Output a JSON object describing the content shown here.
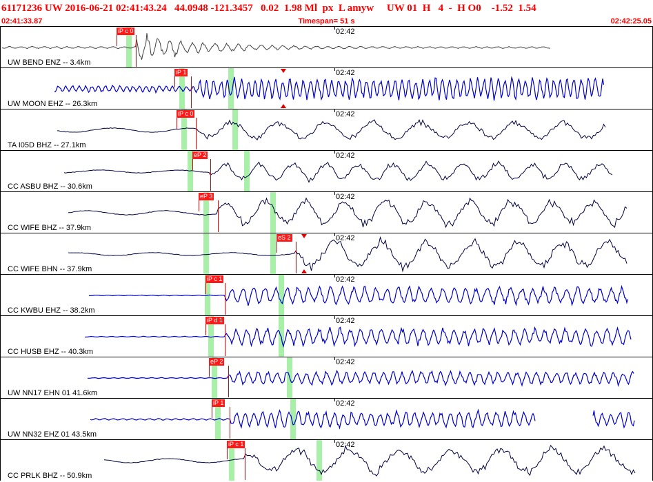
{
  "header": {
    "title": "61171236 UW 2016-06-21 02:41:43.24   44.0948 -121.3457   0.02  1.98 Ml  px  L amyw     UW 01  H   4  -  H O0    -1.52  1.54"
  },
  "subheader": {
    "start_time": "02:41:33.87",
    "timespan": "Timespan=  51 s",
    "end_time": "02:42:25.05"
  },
  "tick_label": "02:42",
  "colors": {
    "header_red": "#ff0000",
    "wave_blue": "#0000cc",
    "wave_navy": "#000040",
    "wave_gray": "#404040",
    "pick_red": "#ff1a1a",
    "window_green": "#a8f0a8"
  },
  "panels": [
    {
      "label": "UW BEND ENZ -- 3.4km",
      "pick": "iP c 0",
      "s_pick": "",
      "wave_style": "gray"
    },
    {
      "label": "UW MOON EHZ -- 26.3km",
      "pick": "iP 1",
      "s_pick": "",
      "wave_style": "blue"
    },
    {
      "label": "TA I05D BHZ -- 27.1km",
      "pick": "iP c 0",
      "s_pick": "",
      "wave_style": "navy"
    },
    {
      "label": "CC ASBU BHZ -- 30.6km",
      "pick": "eP 2",
      "s_pick": "",
      "wave_style": "navy"
    },
    {
      "label": "CC WIFE BHZ -- 37.9km",
      "pick": "eP 3",
      "s_pick": "",
      "wave_style": "navy"
    },
    {
      "label": "CC WIFE BHN -- 37.9km",
      "pick": "",
      "s_pick": "eS 2",
      "wave_style": "navy"
    },
    {
      "label": "CC KWBU EHZ -- 38.2km",
      "pick": "iP c 1",
      "s_pick": "",
      "wave_style": "blue"
    },
    {
      "label": "CC HUSB EHZ -- 40.3km",
      "pick": "iP d 1",
      "s_pick": "",
      "wave_style": "blue"
    },
    {
      "label": "UW NN17 EHN 01 41.6km",
      "pick": "eP 2",
      "s_pick": "",
      "wave_style": "blue"
    },
    {
      "label": "UW NN32 EHZ 01 43.5km",
      "pick": "iP 1",
      "s_pick": "",
      "wave_style": "blue"
    },
    {
      "label": "CC PRLK BHZ -- 50.9km",
      "pick": "iP c 1",
      "s_pick": "",
      "wave_style": "navy"
    }
  ]
}
